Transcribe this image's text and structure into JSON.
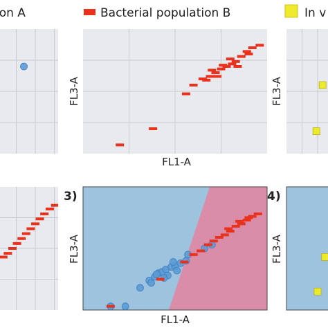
{
  "legend": {
    "items": [
      {
        "label": "ion A",
        "color": "#5b9bd5",
        "marker": "circle"
      },
      {
        "label": "Bacterial population B",
        "color": "#e8321e",
        "marker": "rect"
      },
      {
        "label": "In v",
        "color": "#ecea2a",
        "marker": "square"
      }
    ]
  },
  "colors": {
    "panel_bg": "#e9eaed",
    "grid": "#c9cbd0",
    "class_a_region": "#9ec3df",
    "class_b_region": "#d98da8",
    "population_a": "#5b9bd5",
    "population_b": "#e8321e",
    "population_c": "#ecea2a"
  },
  "panels": [
    {
      "id": "top-left",
      "number": "",
      "xlabel": "",
      "ylabel": ""
    },
    {
      "id": "top-middle",
      "number": "",
      "xlabel": "FL1-A",
      "ylabel": "FL3-A"
    },
    {
      "id": "top-right",
      "number": "",
      "xlabel": "",
      "ylabel": "FL3-A"
    },
    {
      "id": "bottom-left",
      "number": "",
      "xlabel": "",
      "ylabel": ""
    },
    {
      "id": "bottom-middle",
      "number": "3)",
      "xlabel": "FL1-A",
      "ylabel": "FL3-A"
    },
    {
      "id": "bottom-right",
      "number": "4)",
      "xlabel": "",
      "ylabel": "FL3-A"
    }
  ],
  "chart_data": [
    {
      "type": "scatter",
      "panel": "top-left",
      "xlabel": "",
      "ylabel": "",
      "xlim": [
        0,
        10
      ],
      "ylim": [
        0,
        10
      ],
      "grid": true,
      "series": [
        {
          "name": "ion A",
          "marker": "circle",
          "points": [
            [
              3.5,
              7.0
            ]
          ]
        }
      ]
    },
    {
      "type": "scatter",
      "panel": "top-middle",
      "xlabel": "FL1-A",
      "ylabel": "FL3-A",
      "xlim": [
        0,
        10
      ],
      "ylim": [
        0,
        10
      ],
      "grid": true,
      "series": [
        {
          "name": "Bacterial population B",
          "marker": "rect",
          "points": [
            [
              2.0,
              0.7
            ],
            [
              3.8,
              2.0
            ],
            [
              5.6,
              4.8
            ],
            [
              6.0,
              5.5
            ],
            [
              6.5,
              6.0
            ],
            [
              6.9,
              6.2
            ],
            [
              7.2,
              6.5
            ],
            [
              7.5,
              6.8
            ],
            [
              7.8,
              7.0
            ],
            [
              8.1,
              7.2
            ],
            [
              8.3,
              7.4
            ],
            [
              7.0,
              6.7
            ],
            [
              7.6,
              7.1
            ],
            [
              8.0,
              7.6
            ],
            [
              8.6,
              7.8
            ],
            [
              8.9,
              8.2
            ],
            [
              9.2,
              8.5
            ],
            [
              9.6,
              8.7
            ],
            [
              9.0,
              8.0
            ],
            [
              8.4,
              7.0
            ],
            [
              7.3,
              6.2
            ],
            [
              6.7,
              5.9
            ]
          ]
        }
      ]
    },
    {
      "type": "scatter",
      "panel": "top-right",
      "xlabel": "",
      "ylabel": "FL3-A",
      "xlim": [
        0,
        10
      ],
      "ylim": [
        0,
        10
      ],
      "grid": true,
      "series": [
        {
          "name": "In v",
          "marker": "square",
          "points": [
            [
              4.8,
              1.8
            ],
            [
              5.8,
              5.5
            ]
          ]
        }
      ]
    },
    {
      "type": "scatter",
      "panel": "bottom-left",
      "xlabel": "",
      "ylabel": "",
      "xlim": [
        0,
        10
      ],
      "ylim": [
        0,
        10
      ],
      "grid": true,
      "series": [
        {
          "name": "Bacterial population B",
          "marker": "rect",
          "points": [
            [
              0.8,
              4.3
            ],
            [
              1.4,
              4.6
            ],
            [
              2.0,
              5.0
            ],
            [
              2.6,
              5.4
            ],
            [
              3.2,
              5.8
            ],
            [
              3.8,
              6.2
            ],
            [
              4.4,
              6.6
            ],
            [
              5.0,
              7.0
            ],
            [
              5.6,
              7.4
            ],
            [
              6.2,
              7.8
            ],
            [
              6.9,
              8.2
            ],
            [
              7.6,
              8.5
            ]
          ]
        }
      ]
    },
    {
      "type": "scatter",
      "panel": "bottom-middle",
      "xlabel": "FL1-A",
      "ylabel": "FL3-A",
      "xlim": [
        0,
        10
      ],
      "ylim": [
        0,
        10
      ],
      "grid": false,
      "decision_boundary": {
        "note": "diagonal split between two classified regions"
      },
      "series": [
        {
          "name": "ion A",
          "marker": "circle",
          "points": [
            [
              1.5,
              0.3
            ],
            [
              2.3,
              0.3
            ],
            [
              3.1,
              1.8
            ],
            [
              3.6,
              2.4
            ],
            [
              3.9,
              2.7
            ],
            [
              4.1,
              3.0
            ],
            [
              4.3,
              3.1
            ],
            [
              4.5,
              3.3
            ],
            [
              4.0,
              2.9
            ],
            [
              4.6,
              2.8
            ],
            [
              4.8,
              3.5
            ],
            [
              5.0,
              3.6
            ],
            [
              5.3,
              3.8
            ],
            [
              5.6,
              4.0
            ],
            [
              3.7,
              2.2
            ],
            [
              4.4,
              2.6
            ],
            [
              5.1,
              3.2
            ],
            [
              5.7,
              4.5
            ],
            [
              4.9,
              3.9
            ],
            [
              6.6,
              5.0
            ],
            [
              7.0,
              5.3
            ]
          ]
        },
        {
          "name": "Bacterial population B",
          "marker": "rect",
          "points": [
            [
              1.5,
              0.3
            ],
            [
              4.2,
              2.5
            ],
            [
              5.5,
              3.9
            ],
            [
              6.0,
              4.5
            ],
            [
              6.4,
              4.8
            ],
            [
              6.8,
              5.3
            ],
            [
              7.1,
              5.6
            ],
            [
              7.4,
              5.9
            ],
            [
              7.7,
              6.1
            ],
            [
              8.0,
              6.4
            ],
            [
              8.3,
              6.8
            ],
            [
              8.6,
              7.0
            ],
            [
              8.9,
              7.3
            ],
            [
              9.2,
              7.6
            ],
            [
              9.5,
              7.8
            ],
            [
              7.9,
              6.6
            ],
            [
              8.5,
              7.2
            ],
            [
              9.0,
              7.5
            ]
          ]
        }
      ]
    },
    {
      "type": "scatter",
      "panel": "bottom-right",
      "xlabel": "",
      "ylabel": "FL3-A",
      "xlim": [
        0,
        10
      ],
      "ylim": [
        0,
        10
      ],
      "grid": false,
      "series": [
        {
          "name": "In v",
          "marker": "square",
          "points": [
            [
              5.0,
              1.5
            ],
            [
              6.2,
              4.3
            ]
          ]
        }
      ]
    }
  ]
}
